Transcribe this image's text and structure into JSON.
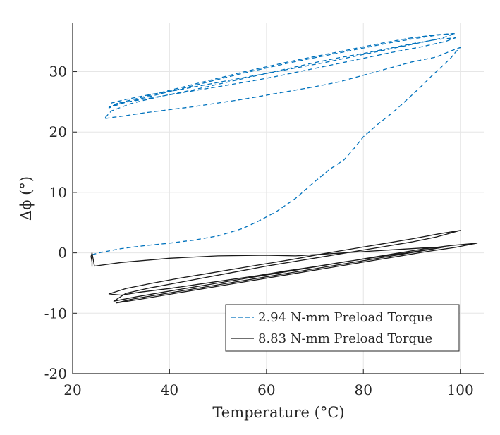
{
  "chart_data": {
    "type": "line",
    "xlabel": "Temperature (°C)",
    "ylabel": "Δϕ (°)",
    "xlim": [
      20,
      105
    ],
    "ylim": [
      -20,
      38
    ],
    "xticks": [
      "20",
      "40",
      "60",
      "80",
      "100"
    ],
    "yticks": [
      "-20",
      "-10",
      "0",
      "10",
      "20",
      "30"
    ],
    "grid": true,
    "legend_position": "bottom-right",
    "series": [
      {
        "name": "2.94 N-mm Preload Torque",
        "color": "#0072BD",
        "style": "dashed",
        "x": [
          24,
          26,
          30,
          35,
          40,
          45,
          50,
          55,
          58,
          62,
          66,
          70,
          73,
          76,
          78,
          80,
          83,
          86,
          88,
          90,
          92,
          94,
          96,
          98,
          99,
          100,
          98,
          95,
          90,
          85,
          80,
          75,
          70,
          65,
          60,
          55,
          50,
          45,
          40,
          35,
          30,
          28,
          26.5,
          28,
          32,
          36,
          40,
          45,
          50,
          55,
          60,
          65,
          70,
          75,
          80,
          85,
          90,
          95,
          99,
          97,
          92,
          86,
          80,
          74,
          68,
          62,
          56,
          50,
          44,
          38,
          33,
          29,
          27.5,
          30,
          35,
          40,
          45,
          50,
          55,
          60,
          65,
          70,
          75,
          80,
          85,
          90,
          95,
          99,
          96,
          90,
          84,
          78,
          72,
          66,
          60,
          54,
          48,
          42,
          36,
          31,
          28,
          27.5,
          30,
          35,
          40,
          45,
          50,
          55,
          60,
          65,
          70,
          75,
          80,
          85,
          90,
          95,
          98.5
        ],
        "y": [
          -0.3,
          0.1,
          0.7,
          1.2,
          1.6,
          2.1,
          2.8,
          4.0,
          5.1,
          6.8,
          9.0,
          11.8,
          13.8,
          15.4,
          17.2,
          19.2,
          21.3,
          23.2,
          24.6,
          26.1,
          27.6,
          29.2,
          30.7,
          32.2,
          33.2,
          34.0,
          33.4,
          32.4,
          31.6,
          30.5,
          29.4,
          28.3,
          27.5,
          26.8,
          26.1,
          25.4,
          24.8,
          24.2,
          23.7,
          23.2,
          22.6,
          22.4,
          22.2,
          23.5,
          24.7,
          25.5,
          26.2,
          27.0,
          27.9,
          28.8,
          29.7,
          30.6,
          31.5,
          32.3,
          33.0,
          33.8,
          34.6,
          35.3,
          35.6,
          35.0,
          34.1,
          33.2,
          32.2,
          31.2,
          30.2,
          29.2,
          28.3,
          27.5,
          26.7,
          25.9,
          25.2,
          24.7,
          24.1,
          24.9,
          25.9,
          26.9,
          27.9,
          28.9,
          29.9,
          30.8,
          31.7,
          32.5,
          33.3,
          34.1,
          34.9,
          35.6,
          36.1,
          36.3,
          35.5,
          34.5,
          33.5,
          32.5,
          31.5,
          30.6,
          29.7,
          28.8,
          27.9,
          27.0,
          26.2,
          25.4,
          24.8,
          24.0,
          24.7,
          25.7,
          26.7,
          27.7,
          28.7,
          29.7,
          30.6,
          31.5,
          32.3,
          33.1,
          33.9,
          34.7,
          35.4,
          36.0,
          36.3
        ]
      },
      {
        "name": "8.83 N-mm Preload Torque",
        "color": "#1a1a1a",
        "style": "solid",
        "x": [
          24,
          24,
          23.8,
          24,
          24.5,
          30,
          40,
          50,
          60,
          66,
          70,
          76,
          80,
          86,
          92,
          97,
          93,
          88,
          82,
          76,
          70,
          64,
          58,
          52,
          46,
          40,
          34,
          30,
          27.5,
          31,
          36,
          42,
          48,
          54,
          60,
          66,
          72,
          78,
          84,
          90,
          96,
          100,
          95,
          90,
          84,
          78,
          72,
          66,
          60,
          54,
          48,
          42,
          36,
          31,
          28.5,
          33,
          38,
          44,
          50,
          56,
          62,
          68,
          74,
          80,
          86,
          92,
          98,
          103.5,
          99,
          93,
          87,
          81,
          75,
          69,
          63,
          57,
          51,
          45,
          39,
          33,
          29,
          32,
          38,
          44,
          50,
          56,
          62,
          68,
          74,
          80,
          86,
          92,
          97
        ],
        "y": [
          -2.3,
          -1.5,
          -0.6,
          0.0,
          -2.2,
          -1.6,
          -0.9,
          -0.5,
          -0.4,
          -0.5,
          -0.3,
          0.0,
          0.2,
          0.5,
          0.8,
          1.0,
          0.5,
          -0.1,
          -0.8,
          -1.5,
          -2.3,
          -3.0,
          -3.8,
          -4.5,
          -5.2,
          -5.9,
          -6.5,
          -7.0,
          -6.8,
          -5.9,
          -5.1,
          -4.2,
          -3.4,
          -2.6,
          -1.8,
          -1.0,
          -0.1,
          0.7,
          1.5,
          2.3,
          3.2,
          3.7,
          2.6,
          1.8,
          1.0,
          0.2,
          -0.6,
          -1.4,
          -2.2,
          -3.1,
          -4.0,
          -4.9,
          -5.8,
          -6.7,
          -8.0,
          -7.3,
          -6.6,
          -5.8,
          -5.0,
          -4.2,
          -3.4,
          -2.6,
          -1.8,
          -1.0,
          -0.2,
          0.6,
          1.2,
          1.6,
          0.9,
          0.2,
          -0.6,
          -1.4,
          -2.2,
          -3.0,
          -3.8,
          -4.6,
          -5.4,
          -6.2,
          -7.0,
          -7.8,
          -8.3,
          -7.7,
          -6.9,
          -6.1,
          -5.3,
          -4.5,
          -3.7,
          -2.9,
          -2.1,
          -1.3,
          -0.5,
          0.3,
          1.0
        ]
      }
    ]
  }
}
